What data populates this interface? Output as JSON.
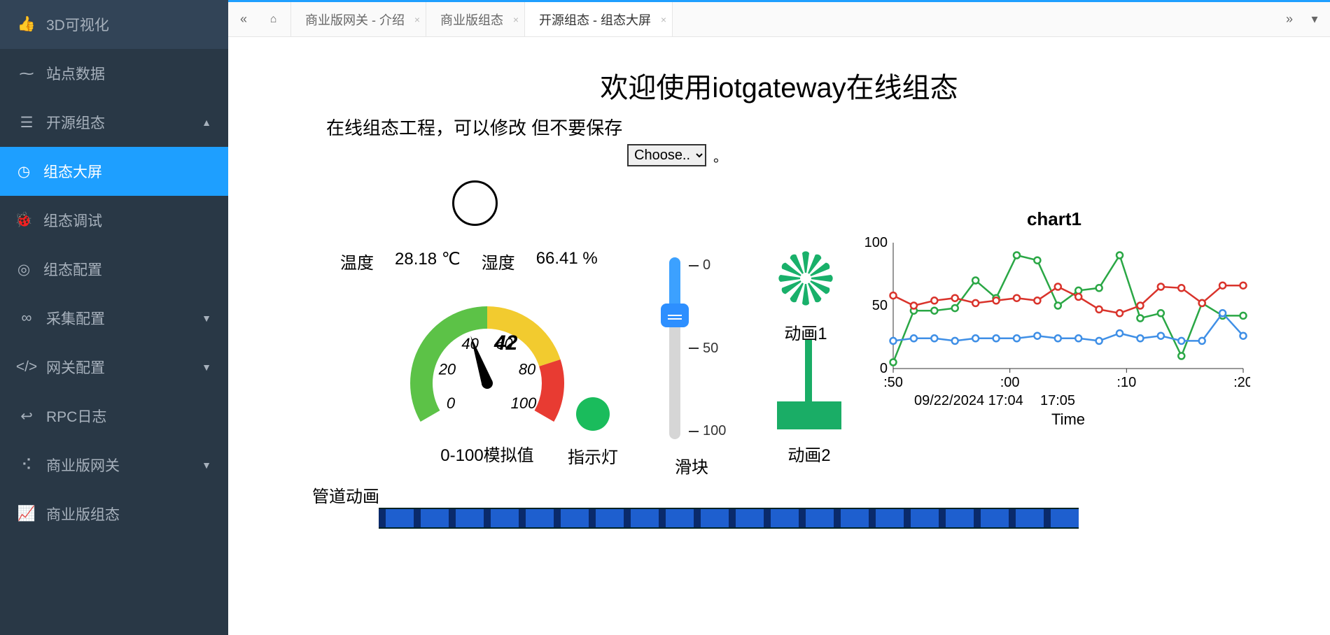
{
  "sidebar": {
    "items": [
      {
        "icon": "thumbs-up",
        "label": "3D可视化",
        "expand": false
      },
      {
        "icon": "pulse",
        "label": "站点数据",
        "expand": false
      },
      {
        "icon": "layers",
        "label": "开源组态",
        "expand": true,
        "expanded": true,
        "children": [
          {
            "icon": "dashboard",
            "label": "组态大屏",
            "active": true
          },
          {
            "icon": "bug",
            "label": "组态调试"
          },
          {
            "icon": "target",
            "label": "组态配置"
          }
        ]
      },
      {
        "icon": "link",
        "label": "采集配置",
        "expand": true
      },
      {
        "icon": "code",
        "label": "网关配置",
        "expand": true
      },
      {
        "icon": "return",
        "label": "RPC日志",
        "expand": false
      },
      {
        "icon": "share",
        "label": "商业版网关",
        "expand": true
      },
      {
        "icon": "chart",
        "label": "商业版组态",
        "expand": false
      }
    ]
  },
  "tabs": {
    "items": [
      {
        "label": "商业版网关 - 介绍"
      },
      {
        "label": "商业版组态"
      },
      {
        "label": "开源组态 - 组态大屏",
        "active": true
      }
    ]
  },
  "page": {
    "title": "欢迎使用iotgateway在线组态",
    "subtitle": "在线组态工程，可以修改 但不要保存",
    "selectLabel": "Choose..",
    "pipeLabel": "管道动画"
  },
  "sensors": {
    "tempLabel": "温度",
    "tempValue": "28.18 ℃",
    "humLabel": "湿度",
    "humValue": "66.41 %"
  },
  "gauge": {
    "min": 0,
    "max": 100,
    "value": 42,
    "ticks": [
      0,
      20,
      40,
      60,
      80,
      100
    ],
    "zones": [
      {
        "from": 0,
        "to": 50,
        "color": "#5cc247"
      },
      {
        "from": 50,
        "to": 80,
        "color": "#f2cb2f"
      },
      {
        "from": 80,
        "to": 100,
        "color": "#e83b32"
      }
    ],
    "label": "0-100模拟值",
    "valueText": "42"
  },
  "led": {
    "label": "指示灯",
    "color": "#1abc5c"
  },
  "slider": {
    "min": 0,
    "max": 100,
    "value": 32,
    "ticks": [
      "0",
      "50",
      "100"
    ],
    "label": "滑块",
    "fillColor": "#3ca1ff",
    "thumbColor": "#2d8fff"
  },
  "anim1": {
    "label": "动画1",
    "color": "#19b06a"
  },
  "anim2": {
    "label": "动画2",
    "color": "#1aad66"
  },
  "chart": {
    "title": "chart1",
    "ylim": [
      0,
      100
    ],
    "yticks": [
      0,
      50,
      100
    ],
    "xticks": [
      ":50",
      ":00",
      ":10",
      ":20"
    ],
    "xSubLabels": [
      "09/22/2024 17:04",
      "17:05"
    ],
    "xAxisTitle": "Time",
    "series": [
      {
        "color": "#2aa745",
        "points": [
          5,
          46,
          46,
          48,
          70,
          56,
          90,
          86,
          50,
          62,
          64,
          90,
          40,
          44,
          10,
          52,
          42,
          42
        ]
      },
      {
        "color": "#d9332b",
        "points": [
          58,
          50,
          54,
          56,
          52,
          54,
          56,
          54,
          65,
          57,
          47,
          44,
          50,
          65,
          64,
          52,
          66,
          66
        ]
      },
      {
        "color": "#3f8fe6",
        "points": [
          22,
          24,
          24,
          22,
          24,
          24,
          24,
          26,
          24,
          24,
          22,
          28,
          24,
          26,
          22,
          22,
          44,
          26
        ]
      }
    ],
    "gridColor": "#555",
    "bg": "#ffffff"
  },
  "colors": {
    "sidebarBg": "#293846",
    "sidebarText": "#a7b1bc",
    "accent": "#1e9fff"
  }
}
